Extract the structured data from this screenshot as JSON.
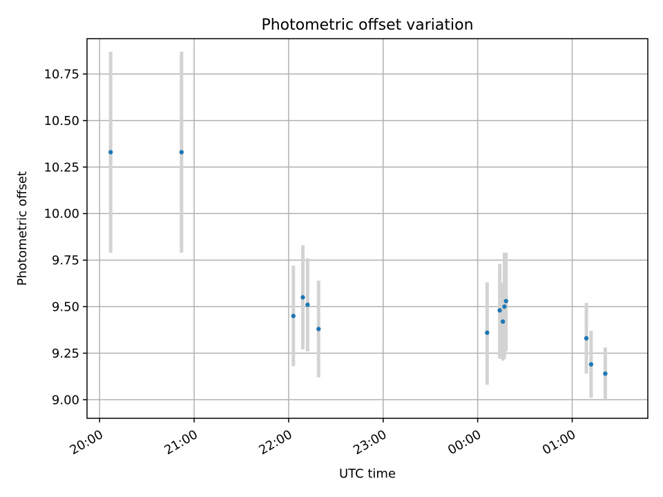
{
  "chart_data": {
    "type": "scatter",
    "title": "Photometric offset variation",
    "xlabel": "UTC time",
    "ylabel": "Photometric offset",
    "x_axis_type": "time",
    "xlim": [
      "19:52",
      "01:48"
    ],
    "ylim": [
      8.9,
      10.94
    ],
    "x_ticks": [
      "20:00",
      "21:00",
      "22:00",
      "23:00",
      "00:00",
      "01:00"
    ],
    "y_ticks": [
      "9.00",
      "9.25",
      "9.50",
      "9.75",
      "10.00",
      "10.25",
      "10.50",
      "10.75"
    ],
    "grid": true,
    "error_bar_color": "#d3d3d3",
    "marker_color": "#1f77b4",
    "points": [
      {
        "time": "20:07",
        "y": 10.33,
        "ymin": 9.79,
        "ymax": 10.87
      },
      {
        "time": "20:52",
        "y": 10.33,
        "ymin": 9.79,
        "ymax": 10.87
      },
      {
        "time": "22:03",
        "y": 9.45,
        "ymin": 9.18,
        "ymax": 9.72
      },
      {
        "time": "22:09",
        "y": 9.55,
        "ymin": 9.27,
        "ymax": 9.83
      },
      {
        "time": "22:12",
        "y": 9.51,
        "ymin": 9.26,
        "ymax": 9.76
      },
      {
        "time": "22:19",
        "y": 9.38,
        "ymin": 9.12,
        "ymax": 9.64
      },
      {
        "time": "00:06",
        "y": 9.36,
        "ymin": 9.08,
        "ymax": 9.63
      },
      {
        "time": "00:14",
        "y": 9.48,
        "ymin": 9.22,
        "ymax": 9.73
      },
      {
        "time": "00:16",
        "y": 9.42,
        "ymin": 9.21,
        "ymax": 9.63
      },
      {
        "time": "00:17",
        "y": 9.5,
        "ymin": 9.22,
        "ymax": 9.79
      },
      {
        "time": "00:18",
        "y": 9.53,
        "ymin": 9.26,
        "ymax": 9.79
      },
      {
        "time": "01:09",
        "y": 9.33,
        "ymin": 9.14,
        "ymax": 9.52
      },
      {
        "time": "01:12",
        "y": 9.19,
        "ymin": 9.01,
        "ymax": 9.37
      },
      {
        "time": "01:21",
        "y": 9.14,
        "ymin": 9.0,
        "ymax": 9.28
      }
    ]
  }
}
